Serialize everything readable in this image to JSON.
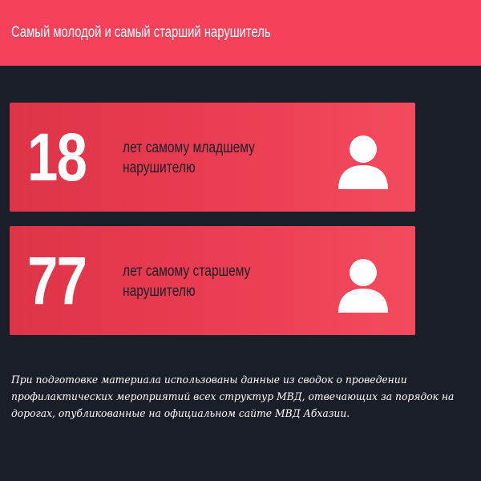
{
  "header": {
    "title": "Самый молодой и самый старший нарушитель"
  },
  "cards": [
    {
      "number": "18",
      "text_lines": [
        "лет самому младшему",
        "нарушителю"
      ],
      "icon": "person-icon"
    },
    {
      "number": "77",
      "text_lines": [
        "лет самому старшему",
        "нарушителю"
      ],
      "icon": "person-icon"
    }
  ],
  "footnote": {
    "lines": [
      "При подготовке материала использованы данные из сводок о проведении",
      "профилактических мероприятий всех структур МВД, отвечающих за порядок на",
      "дорогах, опубликованные на официальном сайте МВД Абхазии."
    ]
  },
  "colors": {
    "header_bg": "#f5425a",
    "page_bg": "#1a1e28",
    "card_gradient_start": "#de3448",
    "card_gradient_end": "#f44a5e",
    "text_on_card": "#1a1e28",
    "white": "#ffffff"
  }
}
